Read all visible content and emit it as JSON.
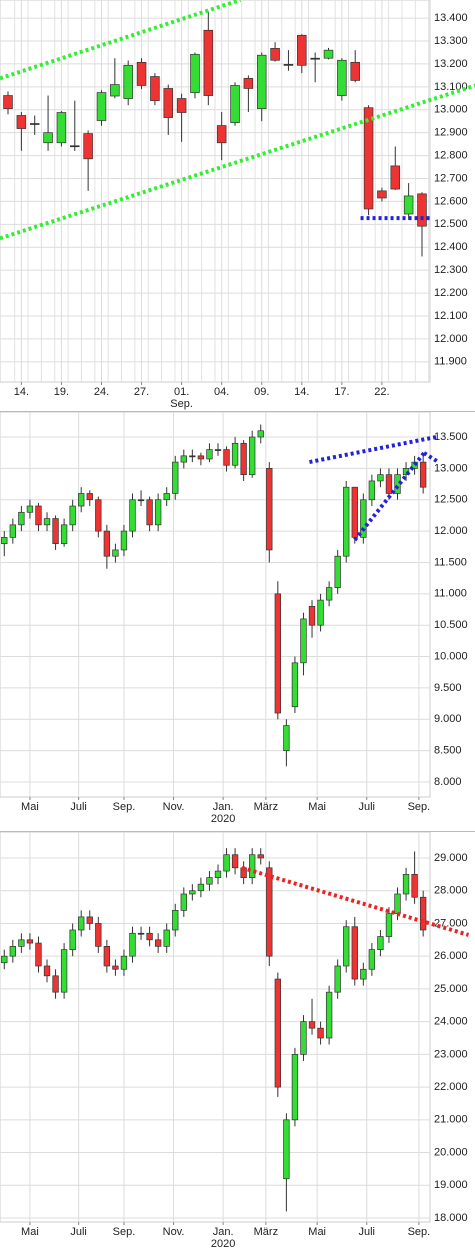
{
  "chart_data": [
    {
      "type": "candlestick",
      "up_color": "#33dd33",
      "down_color": "#ee3333",
      "grid": true,
      "x": [
        0,
        1,
        2,
        3,
        4,
        5,
        6,
        7,
        8,
        9,
        10,
        11,
        12,
        13,
        14,
        15,
        16,
        17,
        18,
        19,
        20,
        21,
        22,
        23,
        24,
        25,
        26,
        27,
        28,
        29,
        30,
        31
      ],
      "open": [
        13062,
        12975,
        12940,
        12856,
        12856,
        12843,
        12896,
        12953,
        13060,
        13049,
        13207,
        13145,
        13093,
        13049,
        13075,
        13347,
        12931,
        12944,
        13137,
        13005,
        13268,
        13198,
        13325,
        13225,
        13225,
        13062,
        13207,
        13009,
        12646,
        12755,
        12545,
        12633
      ],
      "high": [
        13080,
        12990,
        12975,
        13062,
        12995,
        13040,
        12910,
        13085,
        13225,
        13215,
        13225,
        13160,
        13110,
        13070,
        13250,
        13430,
        12990,
        13120,
        13150,
        13250,
        13295,
        13260,
        13330,
        13250,
        13270,
        13225,
        13260,
        13020,
        12660,
        12840,
        12680,
        12640
      ],
      "low": [
        12980,
        12821,
        12890,
        12821,
        12840,
        12820,
        12646,
        12930,
        13050,
        13020,
        13090,
        13020,
        12890,
        12860,
        13050,
        13020,
        12780,
        12930,
        12990,
        12950,
        13210,
        13170,
        13160,
        13120,
        13220,
        13040,
        13120,
        12540,
        12600,
        12650,
        12520,
        12360
      ],
      "close": [
        13005,
        12918,
        12940,
        12900,
        12988,
        12843,
        12786,
        13075,
        13110,
        13194,
        13106,
        13040,
        12966,
        12988,
        13242,
        13062,
        12856,
        13106,
        13093,
        13238,
        13216,
        13198,
        13194,
        13225,
        13260,
        13216,
        13128,
        12567,
        12615,
        12654,
        12624,
        12492
      ],
      "xlim": [
        -0.6,
        31.6
      ],
      "ylim": [
        11812,
        13479
      ],
      "xticks": [
        {
          "value": 1,
          "label": "14."
        },
        {
          "value": 4,
          "label": "19."
        },
        {
          "value": 7,
          "label": "24."
        },
        {
          "value": 10,
          "label": "27."
        },
        {
          "value": 13,
          "label": "01.",
          "sublabel": "Sep."
        },
        {
          "value": 16,
          "label": "04."
        },
        {
          "value": 19,
          "label": "09."
        },
        {
          "value": 22,
          "label": "14."
        },
        {
          "value": 25,
          "label": "17."
        },
        {
          "value": 28,
          "label": "22."
        }
      ],
      "yticks": [
        {
          "value": 11900,
          "label": "11.900"
        },
        {
          "value": 12000,
          "label": "12.000"
        },
        {
          "value": 12100,
          "label": "12.100"
        },
        {
          "value": 12200,
          "label": "12.200"
        },
        {
          "value": 12300,
          "label": "12.300"
        },
        {
          "value": 12400,
          "label": "12.400"
        },
        {
          "value": 12500,
          "label": "12.500"
        },
        {
          "value": 12600,
          "label": "12.600"
        },
        {
          "value": 12700,
          "label": "12.700"
        },
        {
          "value": 12800,
          "label": "12.800"
        },
        {
          "value": 12900,
          "label": "12.900"
        },
        {
          "value": 13000,
          "label": "13.000"
        },
        {
          "value": 13100,
          "label": "13.100"
        },
        {
          "value": 13200,
          "label": "13.200"
        },
        {
          "value": 13300,
          "label": "13.300"
        },
        {
          "value": 13400,
          "label": "13.400"
        }
      ],
      "trend_lines": [
        {
          "color": "#33ee33",
          "points": [
            [
              -0.6,
              13137
            ],
            [
              17.4,
              13479
            ]
          ]
        },
        {
          "color": "#33ee33",
          "points": [
            [
              -0.6,
              12439
            ],
            [
              35,
              13106
            ]
          ]
        },
        {
          "color": "#2222dd",
          "points": [
            [
              26.4,
              12527
            ],
            [
              31.6,
              12527
            ]
          ]
        }
      ]
    },
    {
      "type": "candlestick",
      "up_color": "#33dd33",
      "down_color": "#ee3333",
      "grid": true,
      "x": [
        0,
        1,
        2,
        3,
        4,
        5,
        6,
        7,
        8,
        9,
        10,
        11,
        12,
        13,
        14,
        15,
        16,
        17,
        18,
        19,
        20,
        21,
        22,
        23,
        24,
        25,
        26,
        27,
        28,
        29,
        30,
        31,
        32,
        33,
        34,
        35,
        36,
        37,
        38,
        39,
        40,
        41,
        42,
        43,
        44,
        45,
        46,
        47,
        48,
        49
      ],
      "open": [
        11800,
        11900,
        12100,
        12300,
        12400,
        12100,
        12200,
        11800,
        12100,
        12400,
        12600,
        12500,
        12000,
        11600,
        11700,
        12000,
        12500,
        12500,
        12100,
        12500,
        12600,
        13100,
        13200,
        13200,
        13150,
        13300,
        13300,
        13050,
        13400,
        12900,
        13500,
        13000,
        11000,
        8500,
        9200,
        9900,
        10800,
        10500,
        10900,
        11100,
        11600,
        12700,
        11900,
        12500,
        12800,
        12900,
        12600,
        12900,
        13000,
        13100
      ],
      "high": [
        12000,
        12200,
        12400,
        12500,
        12450,
        12300,
        12250,
        12200,
        12500,
        12700,
        12650,
        12550,
        12100,
        11800,
        12100,
        12600,
        12650,
        12550,
        12600,
        12700,
        13200,
        13300,
        13300,
        13250,
        13400,
        13400,
        13350,
        13500,
        13450,
        13600,
        13700,
        13100,
        11200,
        9000,
        10000,
        10700,
        10900,
        11000,
        11200,
        11700,
        12800,
        12700,
        12600,
        12900,
        13000,
        13000,
        13000,
        13100,
        13200,
        13200
      ],
      "low": [
        11600,
        11800,
        12000,
        12200,
        12000,
        12000,
        11700,
        11750,
        12000,
        12300,
        12400,
        11900,
        11400,
        11500,
        11600,
        11900,
        12400,
        12000,
        12000,
        12400,
        12500,
        13000,
        13100,
        13050,
        13100,
        13200,
        12950,
        13000,
        12800,
        12850,
        13400,
        11500,
        9000,
        8250,
        9100,
        9700,
        10300,
        10400,
        10800,
        11000,
        11500,
        11800,
        11800,
        12400,
        12700,
        12500,
        12500,
        12800,
        12900,
        12600
      ],
      "close": [
        11900,
        12100,
        12300,
        12400,
        12100,
        12200,
        11800,
        12100,
        12400,
        12600,
        12500,
        12000,
        11600,
        11700,
        12000,
        12500,
        12500,
        12100,
        12500,
        12600,
        13100,
        13200,
        13200,
        13150,
        13300,
        13300,
        13050,
        13400,
        12900,
        13500,
        13600,
        11700,
        9100,
        8900,
        9900,
        10600,
        10500,
        10900,
        11100,
        11600,
        12700,
        11900,
        12500,
        12800,
        12900,
        12600,
        12900,
        13000,
        13100,
        12700
      ],
      "xlim": [
        -0.5,
        49.8
      ],
      "ylim": [
        7761,
        13899
      ],
      "xticks": [
        {
          "value": 3,
          "label": "Mai"
        },
        {
          "value": 8.7,
          "label": "Juli"
        },
        {
          "value": 14,
          "label": "Sep."
        },
        {
          "value": 19.8,
          "label": "Nov."
        },
        {
          "value": 25.6,
          "label": "Jan.",
          "sublabel": "2020"
        },
        {
          "value": 30.6,
          "label": "März"
        },
        {
          "value": 36.6,
          "label": "Mai"
        },
        {
          "value": 42.4,
          "label": "Juli"
        },
        {
          "value": 48.5,
          "label": "Sep."
        }
      ],
      "yticks": [
        {
          "value": 8000,
          "label": "8.000"
        },
        {
          "value": 8500,
          "label": "8.500"
        },
        {
          "value": 9000,
          "label": "9.000"
        },
        {
          "value": 9500,
          "label": "9.500"
        },
        {
          "value": 10000,
          "label": "10.000"
        },
        {
          "value": 10500,
          "label": "10.500"
        },
        {
          "value": 11000,
          "label": "11.000"
        },
        {
          "value": 11500,
          "label": "11.500"
        },
        {
          "value": 12000,
          "label": "12.000"
        },
        {
          "value": 12500,
          "label": "12.500"
        },
        {
          "value": 13000,
          "label": "13.000"
        },
        {
          "value": 13500,
          "label": "13.500"
        }
      ],
      "trend_lines": [
        {
          "color": "#2222dd",
          "points": [
            [
              35.7,
              13101
            ],
            [
              50.5,
              13500
            ]
          ]
        },
        {
          "color": "#2222dd",
          "points": [
            [
              41,
              11858
            ],
            [
              49.1,
              13245
            ]
          ]
        },
        {
          "color": "#2222dd",
          "points": [
            [
              49.1,
              13245
            ],
            [
              50.8,
              13100
            ]
          ]
        }
      ]
    },
    {
      "type": "candlestick",
      "up_color": "#33dd33",
      "down_color": "#ee3333",
      "grid": true,
      "x": [
        0,
        1,
        2,
        3,
        4,
        5,
        6,
        7,
        8,
        9,
        10,
        11,
        12,
        13,
        14,
        15,
        16,
        17,
        18,
        19,
        20,
        21,
        22,
        23,
        24,
        25,
        26,
        27,
        28,
        29,
        30,
        31,
        32,
        33,
        34,
        35,
        36,
        37,
        38,
        39,
        40,
        41,
        42,
        43,
        44,
        45,
        46,
        47,
        48,
        49
      ],
      "open": [
        25800,
        26000,
        26300,
        26500,
        26400,
        25700,
        25400,
        24900,
        26200,
        26800,
        27200,
        27000,
        26300,
        25700,
        25600,
        26000,
        26700,
        26700,
        26500,
        26300,
        26800,
        27400,
        27900,
        28000,
        28200,
        28400,
        28600,
        29100,
        28700,
        28400,
        29100,
        28700,
        25300,
        19200,
        21000,
        23000,
        24000,
        23800,
        23500,
        24900,
        25700,
        26900,
        25300,
        25600,
        26200,
        26600,
        27300,
        27900,
        28500,
        27800
      ],
      "high": [
        26200,
        26500,
        26700,
        26700,
        26600,
        25900,
        25600,
        26400,
        27000,
        27400,
        27400,
        27200,
        26500,
        25900,
        26200,
        26900,
        26900,
        26900,
        26700,
        27000,
        27600,
        28100,
        28200,
        28400,
        28600,
        28800,
        29300,
        29300,
        28900,
        29300,
        29300,
        28900,
        25500,
        21200,
        23200,
        24200,
        24700,
        24000,
        25100,
        25900,
        27100,
        27200,
        25800,
        26400,
        26800,
        27500,
        28100,
        28700,
        29200,
        28000
      ],
      "low": [
        25600,
        25800,
        26100,
        26200,
        25500,
        25200,
        24700,
        24700,
        26000,
        26600,
        26800,
        26100,
        25500,
        25400,
        25400,
        25800,
        26500,
        26300,
        26100,
        26100,
        26600,
        27200,
        27700,
        27800,
        28000,
        28200,
        28400,
        28500,
        28200,
        28200,
        28800,
        25700,
        21700,
        18200,
        20800,
        22800,
        23600,
        23300,
        23300,
        24700,
        25500,
        25100,
        25100,
        25400,
        26000,
        26400,
        27100,
        27700,
        27600,
        26600
      ],
      "close": [
        26000,
        26300,
        26500,
        26400,
        25700,
        25400,
        24900,
        26200,
        26800,
        27200,
        27000,
        26300,
        25700,
        25600,
        26000,
        26700,
        26700,
        26500,
        26300,
        26800,
        27400,
        27900,
        28000,
        28200,
        28400,
        28600,
        29100,
        28700,
        28400,
        29100,
        29000,
        26000,
        22000,
        21000,
        23000,
        24000,
        23800,
        23500,
        24900,
        25700,
        26900,
        25300,
        25600,
        26200,
        26600,
        27300,
        27900,
        28500,
        27800,
        26800
      ],
      "xlim": [
        -0.5,
        49.8
      ],
      "ylim": [
        17878,
        29794
      ],
      "xticks": [
        {
          "value": 3,
          "label": "Mai"
        },
        {
          "value": 8.7,
          "label": "Juli"
        },
        {
          "value": 14,
          "label": "Sep."
        },
        {
          "value": 19.8,
          "label": "Nov."
        },
        {
          "value": 25.6,
          "label": "Jan.",
          "sublabel": "2020"
        },
        {
          "value": 30.6,
          "label": "März"
        },
        {
          "value": 36.6,
          "label": "Mai"
        },
        {
          "value": 42.4,
          "label": "Juli"
        },
        {
          "value": 48.5,
          "label": "Sep."
        }
      ],
      "yticks": [
        {
          "value": 18000,
          "label": "18.000"
        },
        {
          "value": 19000,
          "label": "19.000"
        },
        {
          "value": 20000,
          "label": "20.000"
        },
        {
          "value": 21000,
          "label": "21.000"
        },
        {
          "value": 22000,
          "label": "22.000"
        },
        {
          "value": 23000,
          "label": "23.000"
        },
        {
          "value": 24000,
          "label": "24.000"
        },
        {
          "value": 25000,
          "label": "25.000"
        },
        {
          "value": 26000,
          "label": "26.000"
        },
        {
          "value": 27000,
          "label": "27.000"
        },
        {
          "value": 28000,
          "label": "28.000"
        },
        {
          "value": 29000,
          "label": "29.000"
        }
      ],
      "trend_lines": [
        {
          "color": "#ee2222",
          "points": [
            [
              27.8,
              28700
            ],
            [
              54.3,
              26650
            ]
          ]
        }
      ]
    }
  ]
}
